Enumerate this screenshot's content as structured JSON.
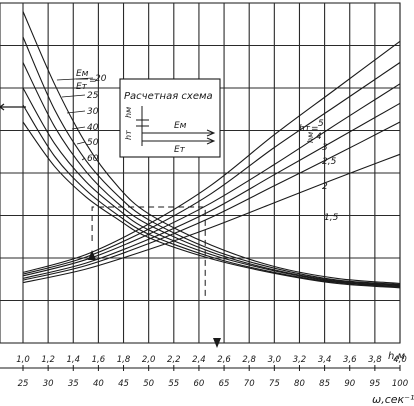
{
  "chart_data": {
    "type": "line",
    "xlabel": "h,м",
    "x2label": "ω,сек⁻¹",
    "xlim": [
      1.0,
      4.0
    ],
    "x_ticks": [
      "1,0",
      "1,2",
      "1,4",
      "1,6",
      "1,8",
      "2,0",
      "2,2",
      "2,4",
      "2,6",
      "2,8",
      "3,0",
      "3,2",
      "3,4",
      "3,6",
      "3,8",
      "4,0"
    ],
    "x2_ticks": [
      "25",
      "30",
      "35",
      "40",
      "45",
      "50",
      "55",
      "60",
      "65",
      "70",
      "75",
      "80",
      "85",
      "90",
      "95",
      "100"
    ],
    "inset": {
      "title": "Расчетная схема",
      "hm_label": "hм",
      "ht_label": "hт",
      "em_label": "Eм",
      "et_label": "Eт"
    },
    "ratio_label_num": "Eм",
    "ratio_label_den": "Eт",
    "ratio_label_eq": "=",
    "ht_label_prefix": "hт",
    "ht_label_eq": "=",
    "ht_label_hm": "hм",
    "series_ratio": [
      {
        "name": "20",
        "values": [
          [
            1.0,
            39
          ],
          [
            1.25,
            30.5
          ],
          [
            1.5,
            23.5
          ],
          [
            1.75,
            18.5
          ],
          [
            2.0,
            15.2
          ],
          [
            2.5,
            11.5
          ],
          [
            3.0,
            9.0
          ],
          [
            3.5,
            7.6
          ],
          [
            4.0,
            7.0
          ]
        ]
      },
      {
        "name": "25",
        "values": [
          [
            1.0,
            36
          ],
          [
            1.25,
            27.5
          ],
          [
            1.5,
            21.5
          ],
          [
            1.75,
            17.4
          ],
          [
            2.0,
            14.5
          ],
          [
            2.5,
            11.0
          ],
          [
            3.0,
            8.8
          ],
          [
            3.5,
            7.4
          ],
          [
            4.0,
            6.9
          ]
        ]
      },
      {
        "name": "30",
        "values": [
          [
            1.0,
            33
          ],
          [
            1.25,
            25.5
          ],
          [
            1.5,
            20.2
          ],
          [
            1.75,
            16.5
          ],
          [
            2.0,
            13.9
          ],
          [
            2.5,
            10.7
          ],
          [
            3.0,
            8.6
          ],
          [
            3.5,
            7.3
          ],
          [
            4.0,
            6.8
          ]
        ]
      },
      {
        "name": "40",
        "values": [
          [
            1.0,
            30
          ],
          [
            1.25,
            23.5
          ],
          [
            1.5,
            19.0
          ],
          [
            1.75,
            15.8
          ],
          [
            2.0,
            13.3
          ],
          [
            2.5,
            10.4
          ],
          [
            3.0,
            8.5
          ],
          [
            3.5,
            7.2
          ],
          [
            4.0,
            6.7
          ]
        ]
      },
      {
        "name": "50",
        "values": [
          [
            1.0,
            28
          ],
          [
            1.25,
            22.0
          ],
          [
            1.5,
            18.0
          ],
          [
            1.75,
            15.1
          ],
          [
            2.0,
            12.8
          ],
          [
            2.5,
            10.1
          ],
          [
            3.0,
            8.3
          ],
          [
            3.5,
            7.1
          ],
          [
            4.0,
            6.6
          ]
        ]
      },
      {
        "name": "60",
        "values": [
          [
            1.0,
            26
          ],
          [
            1.25,
            20.8
          ],
          [
            1.5,
            17.2
          ],
          [
            1.75,
            14.6
          ],
          [
            2.0,
            12.4
          ],
          [
            2.5,
            9.9
          ],
          [
            3.0,
            8.2
          ],
          [
            3.5,
            7.0
          ],
          [
            4.0,
            6.5
          ]
        ]
      }
    ],
    "series_ht": [
      {
        "name": "5",
        "values": [
          [
            1.0,
            8.3
          ],
          [
            1.5,
            10.4
          ],
          [
            2.0,
            14.0
          ],
          [
            2.5,
            18.6
          ],
          [
            3.0,
            24.5
          ],
          [
            3.5,
            30.0
          ],
          [
            4.0,
            35.5
          ]
        ]
      },
      {
        "name": "4",
        "values": [
          [
            1.0,
            8.1
          ],
          [
            1.5,
            10.1
          ],
          [
            2.0,
            13.4
          ],
          [
            2.5,
            17.6
          ],
          [
            3.0,
            23.0
          ],
          [
            3.5,
            28.0
          ],
          [
            4.0,
            33.0
          ]
        ]
      },
      {
        "name": "3",
        "values": [
          [
            1.0,
            7.9
          ],
          [
            1.5,
            9.8
          ],
          [
            2.0,
            12.8
          ],
          [
            2.5,
            16.5
          ],
          [
            3.0,
            21.0
          ],
          [
            3.5,
            25.8
          ],
          [
            4.0,
            30.5
          ]
        ]
      },
      {
        "name": "2,5",
        "values": [
          [
            1.0,
            7.6
          ],
          [
            1.5,
            9.4
          ],
          [
            2.0,
            12.2
          ],
          [
            2.5,
            15.6
          ],
          [
            3.0,
            19.8
          ],
          [
            3.5,
            24.0
          ],
          [
            4.0,
            28.2
          ]
        ]
      },
      {
        "name": "2",
        "values": [
          [
            1.0,
            7.4
          ],
          [
            1.5,
            9.1
          ],
          [
            2.0,
            11.7
          ],
          [
            2.5,
            14.8
          ],
          [
            3.0,
            18.5
          ],
          [
            3.5,
            22.2
          ],
          [
            4.0,
            26.0
          ]
        ]
      },
      {
        "name": "1,5",
        "values": [
          [
            1.0,
            7.1
          ],
          [
            1.5,
            8.7
          ],
          [
            2.0,
            11.0
          ],
          [
            2.5,
            13.6
          ],
          [
            3.0,
            16.5
          ],
          [
            3.5,
            19.4
          ],
          [
            4.0,
            22.2
          ]
        ]
      }
    ],
    "example_path": [
      [
        1.55,
        12.0
      ],
      [
        1.55,
        16.0
      ],
      [
        2.45,
        16.0
      ],
      [
        2.45,
        5.5
      ]
    ]
  }
}
